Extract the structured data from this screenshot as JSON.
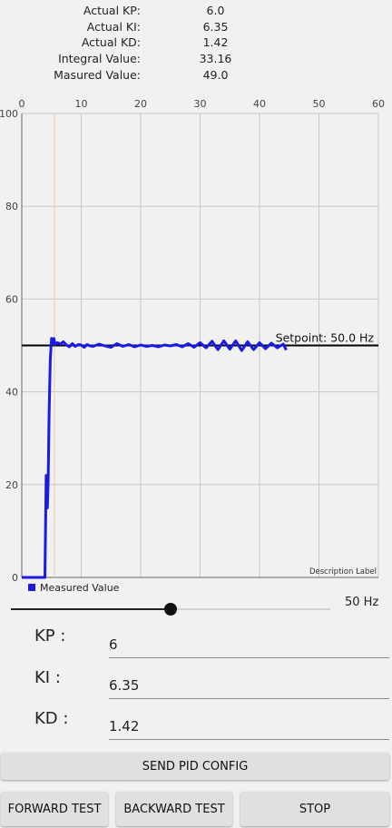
{
  "stats": [
    {
      "label": "Actual KP:",
      "value": "6.0"
    },
    {
      "label": "Actual KI:",
      "value": "6.35"
    },
    {
      "label": "Actual KD:",
      "value": "1.42"
    },
    {
      "label": "Integral Value:",
      "value": "33.16"
    },
    {
      "label": "Masured Value:",
      "value": "49.0"
    }
  ],
  "chart_data": {
    "type": "line",
    "xlim": [
      0,
      60
    ],
    "ylim": [
      0,
      100
    ],
    "x_ticks": [
      "0",
      "10",
      "20",
      "30",
      "40",
      "50",
      "60"
    ],
    "y_ticks": [
      "100",
      "80",
      "60",
      "40",
      "20",
      "0"
    ],
    "x_tick_values": [
      0,
      10,
      20,
      30,
      40,
      50,
      60
    ],
    "y_tick_values": [
      100,
      80,
      60,
      40,
      20,
      0
    ],
    "grid": true,
    "legend_position": "bottom-left",
    "description_label": "Description Label",
    "marker_x": 5.5,
    "setpoint": {
      "value": 50,
      "label": "Setpoint: 50.0 Hz",
      "color": "#000000"
    },
    "series": [
      {
        "name": "Measured Value",
        "color": "#1a1ae6",
        "x": [
          0,
          3.9,
          4.1,
          4.3,
          4.45,
          4.6,
          4.8,
          5.0,
          5.2,
          5.4,
          5.6,
          5.8,
          6,
          6.5,
          7,
          7.5,
          8,
          8.5,
          9,
          9.5,
          10,
          10.5,
          11,
          11.5,
          12,
          13,
          14,
          15,
          16,
          17,
          18,
          19,
          20,
          21,
          22,
          23,
          24,
          25,
          26,
          27,
          28,
          29,
          30,
          31,
          32,
          33,
          34,
          35,
          36,
          37,
          38,
          39,
          40,
          41,
          42,
          43,
          44,
          44.5
        ],
        "values": [
          0,
          0,
          22,
          15,
          21,
          35,
          47,
          51.5,
          50.5,
          51.5,
          50.2,
          50.4,
          50.6,
          50.3,
          50.8,
          50.1,
          49.7,
          50.4,
          49.8,
          50.2,
          50.1,
          49.6,
          50.2,
          49.9,
          49.8,
          50.3,
          49.9,
          49.6,
          50.4,
          49.8,
          50.2,
          49.7,
          50.1,
          49.8,
          50.0,
          49.7,
          50.1,
          49.9,
          50.2,
          49.7,
          50.4,
          49.6,
          50.6,
          49.5,
          50.9,
          49.1,
          51.0,
          49.2,
          51.0,
          48.9,
          50.8,
          49.1,
          50.6,
          49.3,
          50.5,
          49.5,
          50.3,
          49.0
        ]
      }
    ]
  },
  "slider": {
    "value_fraction": 0.5,
    "readout": "50 Hz"
  },
  "pid": {
    "kp_label": "KP :",
    "kp_value": "6",
    "ki_label": "KI :",
    "ki_value": "6.35",
    "kd_label": "KD :",
    "kd_value": "1.42"
  },
  "buttons": {
    "send": "SEND PID CONFIG",
    "forward": "FORWARD TEST",
    "backward": "BACKWARD TEST",
    "stop": "STOP"
  },
  "colors": {
    "accent": "#1a1ae6",
    "gridline": "#c8c8c8",
    "setpoint": "#000000",
    "marker": "#f2c9a8"
  }
}
